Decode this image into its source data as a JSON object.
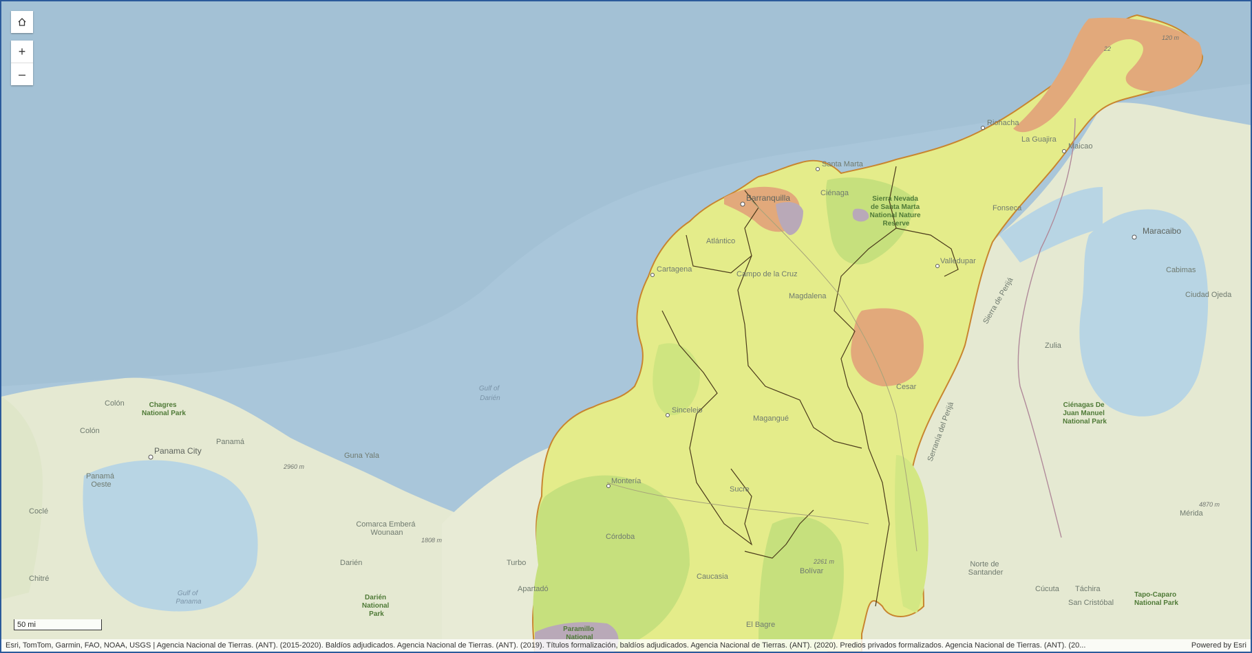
{
  "map": {
    "controls": {
      "home_icon": "home-icon",
      "zoom_in": "+",
      "zoom_out": "–"
    },
    "scale": "50 mi",
    "attribution": "Esri, TomTom, Garmin, FAO, NOAA, USGS | Agencia Nacional de Tierras. (ANT). (2015-2020). Baldíos adjudicados. Agencia Nacional de Tierras. (ANT). (2019). Títulos formalización, baldíos adjudicados. Agencia Nacional de Tierras. (ANT). (2020). Predios privados formalizados. Agencia Nacional de Tierras. (ANT). (20...",
    "powered_by": "Powered by Esri",
    "colors": {
      "water": "#a9c6da",
      "land": "#e8ebd6",
      "layer_yellow": "#e5ec8a",
      "layer_green": "#c8e27e",
      "layer_orange": "#e3a97b",
      "layer_gray": "#b9a9b8",
      "outline": "#c8852f"
    },
    "labels": {
      "riohacha": "Riohacha",
      "la_guajira": "La Guajira",
      "maicao": "Maicao",
      "santa_marta": "Santa Marta",
      "cienaga": "Ciénaga",
      "barranquilla": "Barranquilla",
      "sierra_nevada": [
        "Sierra Nevada",
        "de Santa Marta",
        "National Nature",
        "Reserve"
      ],
      "fonseca": "Fonseca",
      "maracaibo": "Maracaibo",
      "cabimas": "Cabimas",
      "ciudad_ojeda": "Ciudad Ojeda",
      "atlantico": "Atlántico",
      "cartagena": "Cartagena",
      "campo_de_la_cruz": "Campo de la Cruz",
      "valledupar": "Valledupar",
      "magdalena": "Magdalena",
      "zulia": "Zulia",
      "cesar": "Cesar",
      "gulf_of_darien": [
        "Gulf of",
        "Darién"
      ],
      "sincelejo": "Sincelejo",
      "magangue": "Magangué",
      "cienagas": [
        "Ciénagas De",
        "Juan Manuel",
        "National Park"
      ],
      "sierra_de_perija": "Sierra de Perijá",
      "serrania": "Serranía del Perijá",
      "colon": "Colón",
      "chagres": [
        "Chagres",
        "National Park"
      ],
      "colon2": "Colón",
      "panama": "Panamá",
      "panama_city": "Panama City",
      "guna_yala": "Guna Yala",
      "panama_oeste": [
        "Panamá",
        "Oeste"
      ],
      "monteria": "Montería",
      "sucre": "Sucre",
      "cocle": "Coclé",
      "comarca": [
        "Comarca Emberá",
        "Wounaan"
      ],
      "cordoba": "Córdoba",
      "darien": "Darién",
      "turbo": "Turbo",
      "caucasia": "Caucasia",
      "bolivar": "Bolívar",
      "norte_santander": [
        "Norte de",
        "Santander"
      ],
      "apartado": "Apartadó",
      "gulf_of_panama": [
        "Gulf of",
        "Panama"
      ],
      "darien_park": [
        "Darién",
        "National",
        "Park"
      ],
      "el_bagre": "El Bagre",
      "cucuta": "Cúcuta",
      "tachira": "Táchira",
      "san_cristobal": "San Cristóbal",
      "tapo_caparo": [
        "Tapo-Caparo",
        "National Park"
      ],
      "merida": "Mérida",
      "chitre": "Chitré",
      "paramillo": [
        "Paramillo",
        "National"
      ],
      "e2960": "2960 m",
      "e1808": "1808 m",
      "e2261": "2261 m",
      "e4870": "4870 m",
      "e22": "22",
      "e120": "120 m"
    }
  }
}
